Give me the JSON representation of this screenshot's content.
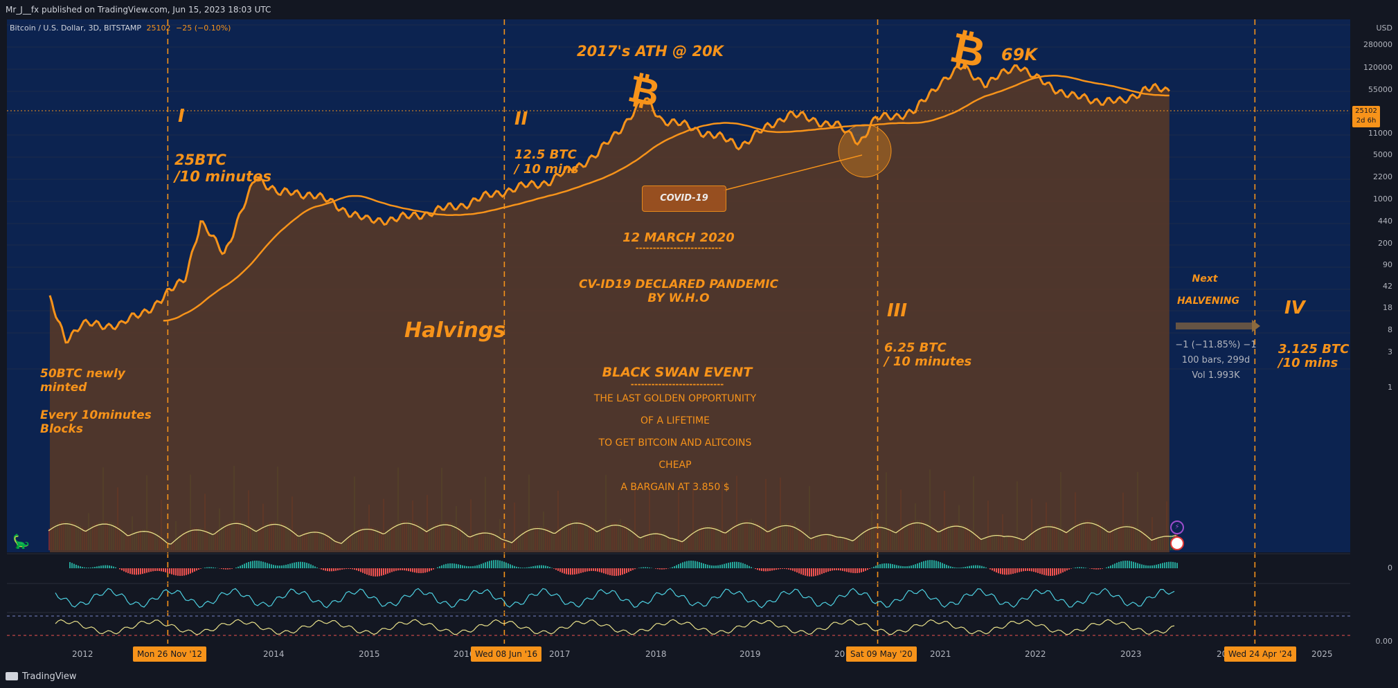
{
  "header": {
    "published": "Mr_J__fx published on TradingView.com, Jun 15, 2023 18:03 UTC",
    "symbol": "Bitcoin / U.S. Dollar, 3D, BITSTAMP",
    "last_price": "25102",
    "change": "−25 (−0.10%)",
    "currency": "USD"
  },
  "price_axis": {
    "labels": [
      "280000",
      "120000",
      "55000",
      "25102",
      "11000",
      "5000",
      "2200",
      "1000",
      "440",
      "200",
      "90",
      "42",
      "18",
      "8",
      "3",
      "1"
    ],
    "tag_line1": "25102",
    "tag_line2": "2d 6h"
  },
  "lower_axis": {
    "zero_label": "0",
    "bottom_label": "0.00"
  },
  "time_axis": {
    "years": [
      "2012",
      "2014",
      "2015",
      "2016",
      "2017",
      "2018",
      "2019",
      "20",
      "2021",
      "2022",
      "2023",
      "20",
      "2025"
    ],
    "halving_dates": [
      "Mon 26 Nov '12",
      "Wed 08 Jun '16",
      "Sat 09 May '20",
      "Wed 24 Apr '24"
    ]
  },
  "annotations": {
    "ath_2017": "2017's ATH @ 20K",
    "ath_69k": "69K",
    "roman_1": "I",
    "roman_2": "II",
    "roman_3": "III",
    "roman_4": "IV",
    "reward_1_line1": "25BTC",
    "reward_1_line2": "/10 minutes",
    "reward_2_line1": "12.5 BTC",
    "reward_2_line2": "/ 10 mins",
    "reward_3_line1": "6.25 BTC",
    "reward_3_line2": "/ 10 minutes",
    "reward_4_line1": "3.125 BTC",
    "reward_4_line2": "/10 mins",
    "genesis_line1": "50BTC newly",
    "genesis_line2": "minted",
    "genesis_line3": "Every 10minutes",
    "genesis_line4": "Blocks",
    "halvings": "Halvings",
    "covid_box": "COVID-19",
    "march_2020": "12 MARCH 2020",
    "march_underline": "-------------------------",
    "pandemic_line1": "CV-ID19 DECLARED PANDEMIC",
    "pandemic_line2": "BY W.H.O",
    "black_swan": "BLACK SWAN EVENT",
    "black_swan_underline": "---------------------------",
    "golden_1": "THE LAST GOLDEN OPPORTUNITY",
    "golden_2": "OF A LIFETIME",
    "golden_3": "TO GET BITCOIN  AND ALTCOINS",
    "golden_4": "CHEAP",
    "golden_5": "A BARGAIN  AT  3.850 $",
    "next_line1": "Next",
    "next_line2": "HALVENING",
    "measure_1": "−1 (−11.85%) −1",
    "measure_2": "100 bars, 299d",
    "measure_3": "Vol 1.993K"
  },
  "colors": {
    "background": "#131722",
    "accent": "#f7931a",
    "upper_bg": "#0c2350",
    "area_fill": "#5a3a26"
  },
  "footer": {
    "brand": "TradingView"
  },
  "chart_data": {
    "type": "line",
    "title": "Bitcoin / U.S. Dollar, 3D, BITSTAMP",
    "y_scale": "log",
    "series": [
      {
        "name": "Bitcoin / U.S. Dollar",
        "x": [
          "2011-09",
          "2011-11",
          "2012-01",
          "2012-06",
          "2012-11",
          "2013-02",
          "2013-04",
          "2013-07",
          "2013-11",
          "2014-02",
          "2014-06",
          "2015-01",
          "2015-06",
          "2016-01",
          "2016-06",
          "2016-12",
          "2017-06",
          "2017-12",
          "2018-02",
          "2018-06",
          "2018-12",
          "2019-06",
          "2019-12",
          "2020-03",
          "2020-05",
          "2020-10",
          "2021-01",
          "2021-04",
          "2021-07",
          "2021-11",
          "2022-01",
          "2022-06",
          "2022-12",
          "2023-03",
          "2023-06"
        ],
        "values": [
          12,
          3,
          5,
          5,
          12,
          30,
          200,
          70,
          1100,
          600,
          600,
          220,
          250,
          400,
          650,
          950,
          2500,
          19000,
          9000,
          6500,
          3500,
          11000,
          7200,
          4000,
          9000,
          12000,
          35000,
          60000,
          32000,
          67000,
          40000,
          20000,
          16500,
          28000,
          25102
        ]
      }
    ],
    "halvings": [
      "2012-11-26",
      "2016-06-08",
      "2020-05-09",
      "2024-04-24"
    ],
    "ylim": [
      1,
      280000
    ]
  }
}
